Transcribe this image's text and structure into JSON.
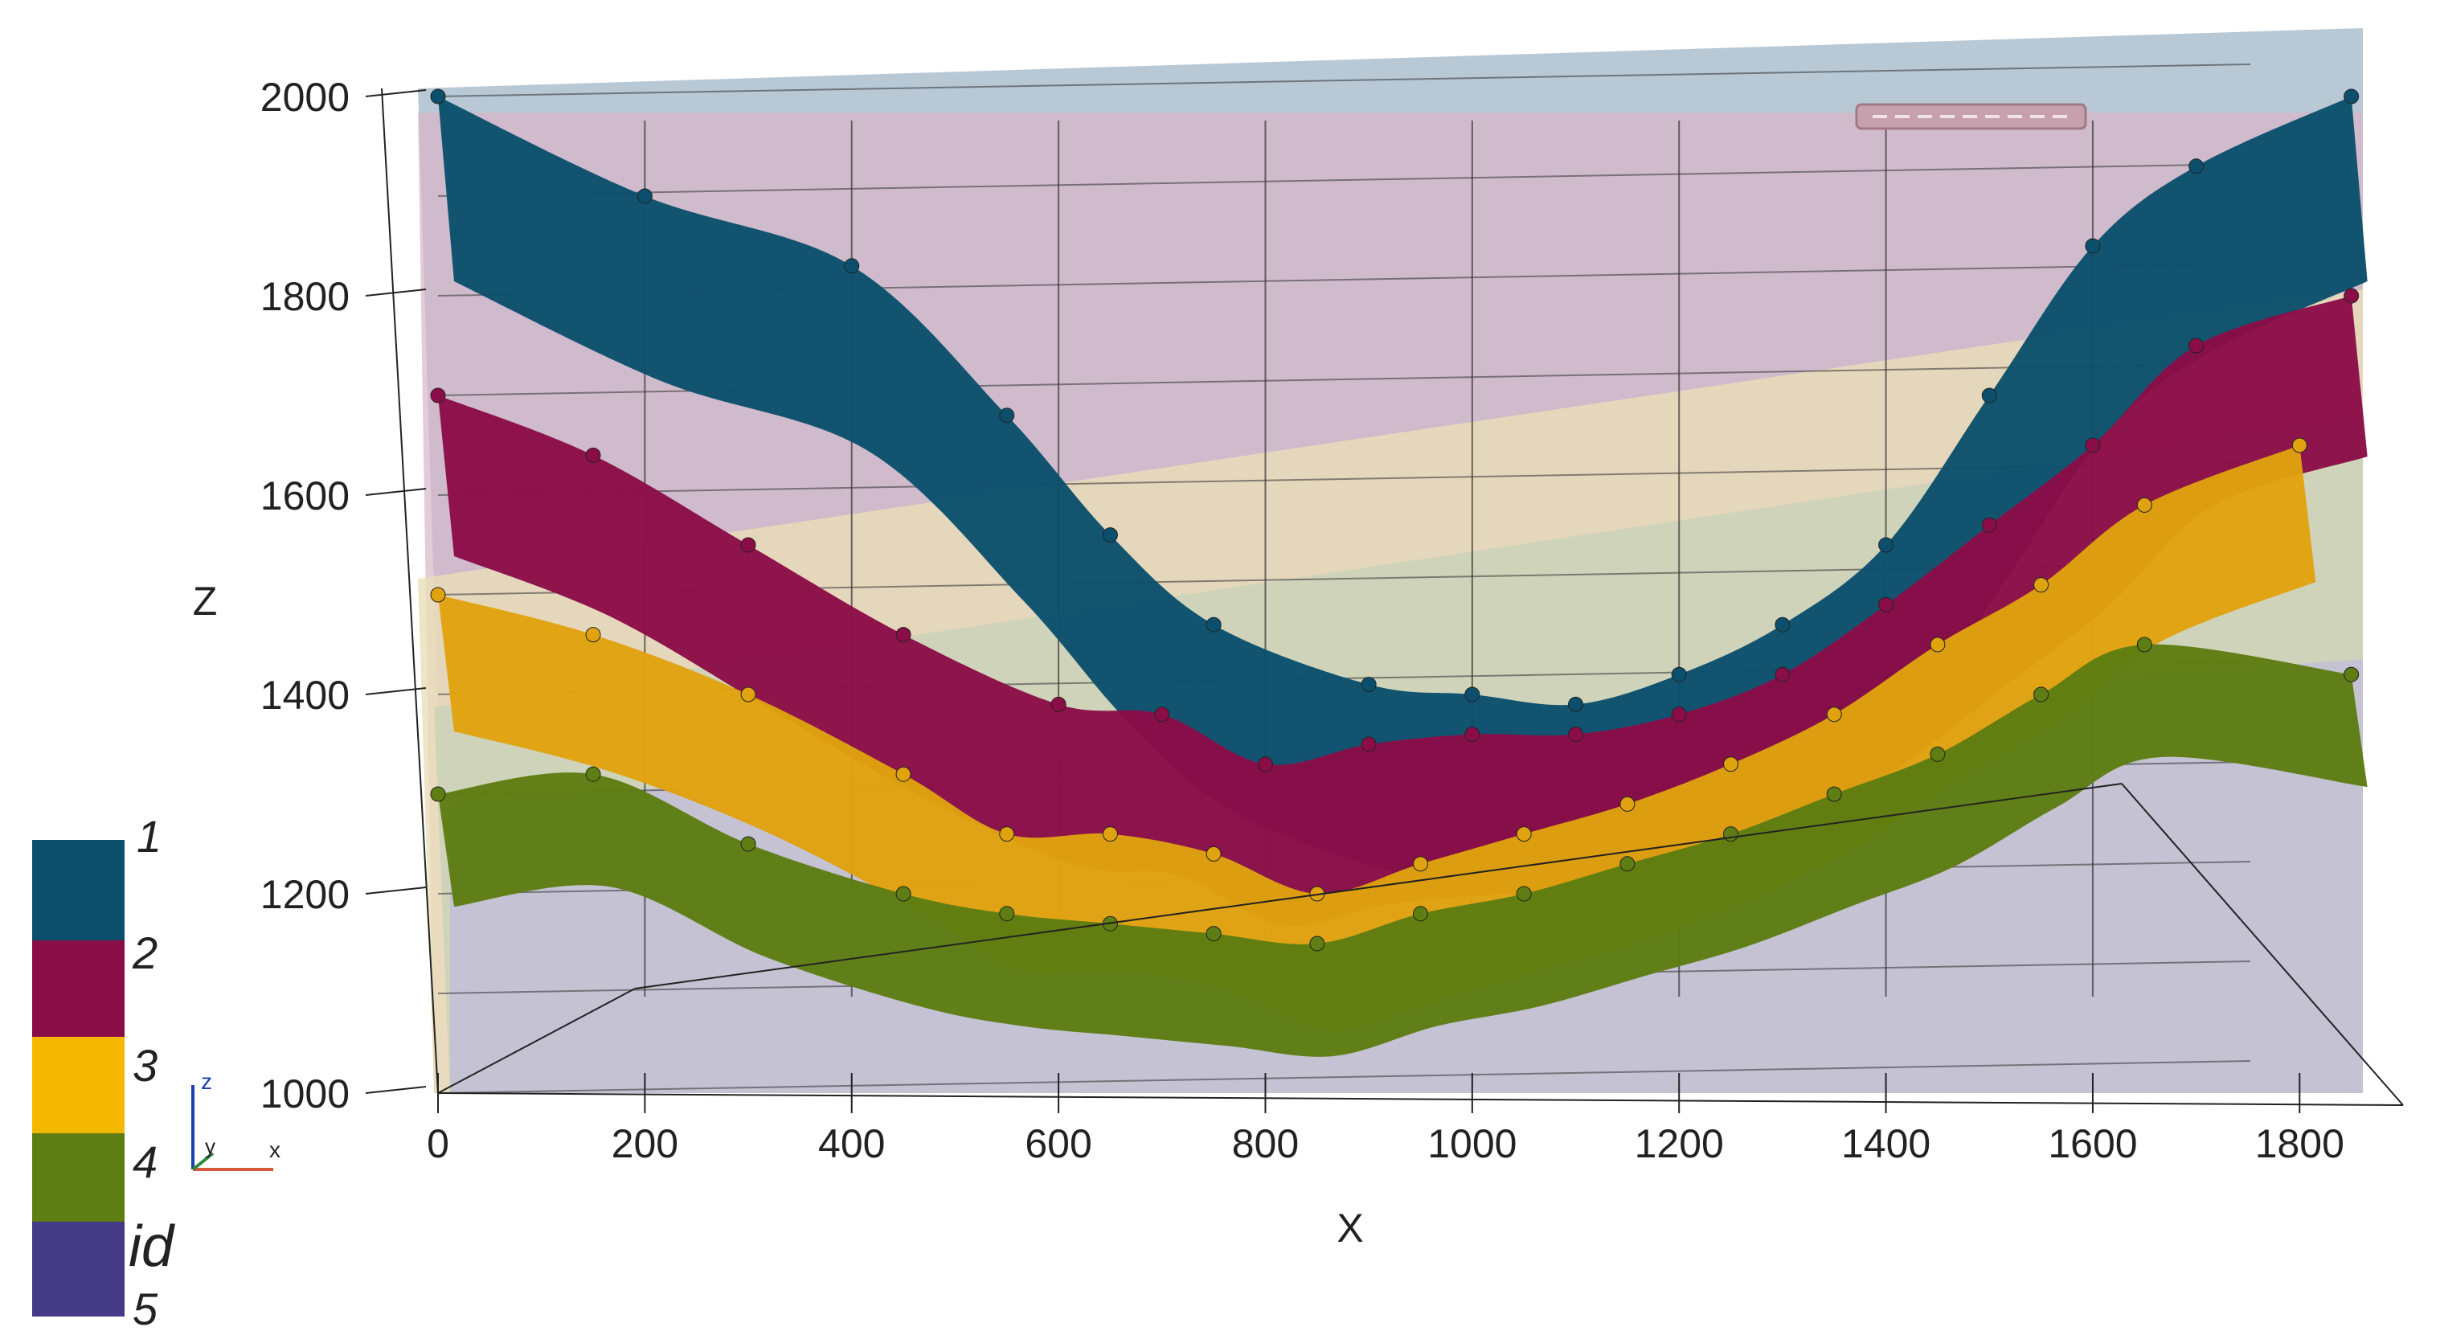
{
  "chart_data": {
    "type": "area",
    "title": "",
    "xlabel": "X",
    "zlabel": "Z",
    "xlim": [
      0,
      1900
    ],
    "zlim": [
      1000,
      2000
    ],
    "x_ticks": [
      "0",
      "200",
      "400",
      "600",
      "800",
      "1000",
      "1200",
      "1400",
      "1600",
      "1800"
    ],
    "z_ticks": [
      "1000",
      "1200",
      "1400",
      "1600",
      "1800",
      "2000"
    ],
    "grid": true,
    "legend": {
      "position": "bottom-left",
      "entries": [
        {
          "label": "1",
          "color": "#0b4f6c"
        },
        {
          "label": "2",
          "color": "#8b0d48"
        },
        {
          "label": "3",
          "color": "#e0a20e"
        },
        {
          "label": "4",
          "color": "#5e7d12"
        },
        {
          "label": "5",
          "color": "#453a85"
        }
      ],
      "header": "id"
    },
    "axes_triad": {
      "z": "z",
      "y": "y",
      "x": "x"
    },
    "series": [
      {
        "label": "1",
        "color": "#0b4f6c",
        "x": [
          0,
          200,
          400,
          550,
          650,
          750,
          900,
          1000,
          1100,
          1200,
          1300,
          1400,
          1500,
          1600,
          1700,
          1850
        ],
        "z": [
          2000,
          1900,
          1830,
          1680,
          1560,
          1470,
          1410,
          1400,
          1390,
          1420,
          1470,
          1550,
          1700,
          1850,
          1930,
          2000
        ]
      },
      {
        "label": "2",
        "color": "#8b0d48",
        "x": [
          0,
          150,
          300,
          450,
          600,
          700,
          800,
          900,
          1000,
          1100,
          1200,
          1300,
          1400,
          1500,
          1600,
          1700,
          1850
        ],
        "z": [
          1700,
          1640,
          1550,
          1460,
          1390,
          1380,
          1330,
          1350,
          1360,
          1360,
          1380,
          1420,
          1490,
          1570,
          1650,
          1750,
          1800
        ]
      },
      {
        "label": "3",
        "color": "#e0a20e",
        "x": [
          0,
          150,
          300,
          450,
          550,
          650,
          750,
          850,
          950,
          1050,
          1150,
          1250,
          1350,
          1450,
          1550,
          1650,
          1800
        ],
        "z": [
          1500,
          1460,
          1400,
          1320,
          1260,
          1260,
          1240,
          1200,
          1230,
          1260,
          1290,
          1330,
          1380,
          1450,
          1510,
          1590,
          1650
        ]
      },
      {
        "label": "4",
        "color": "#5e7d12",
        "x": [
          0,
          150,
          300,
          450,
          550,
          650,
          750,
          850,
          950,
          1050,
          1150,
          1250,
          1350,
          1450,
          1550,
          1650,
          1850
        ],
        "z": [
          1300,
          1320,
          1250,
          1200,
          1180,
          1170,
          1160,
          1150,
          1180,
          1200,
          1230,
          1260,
          1300,
          1340,
          1400,
          1450,
          1420
        ]
      }
    ]
  }
}
